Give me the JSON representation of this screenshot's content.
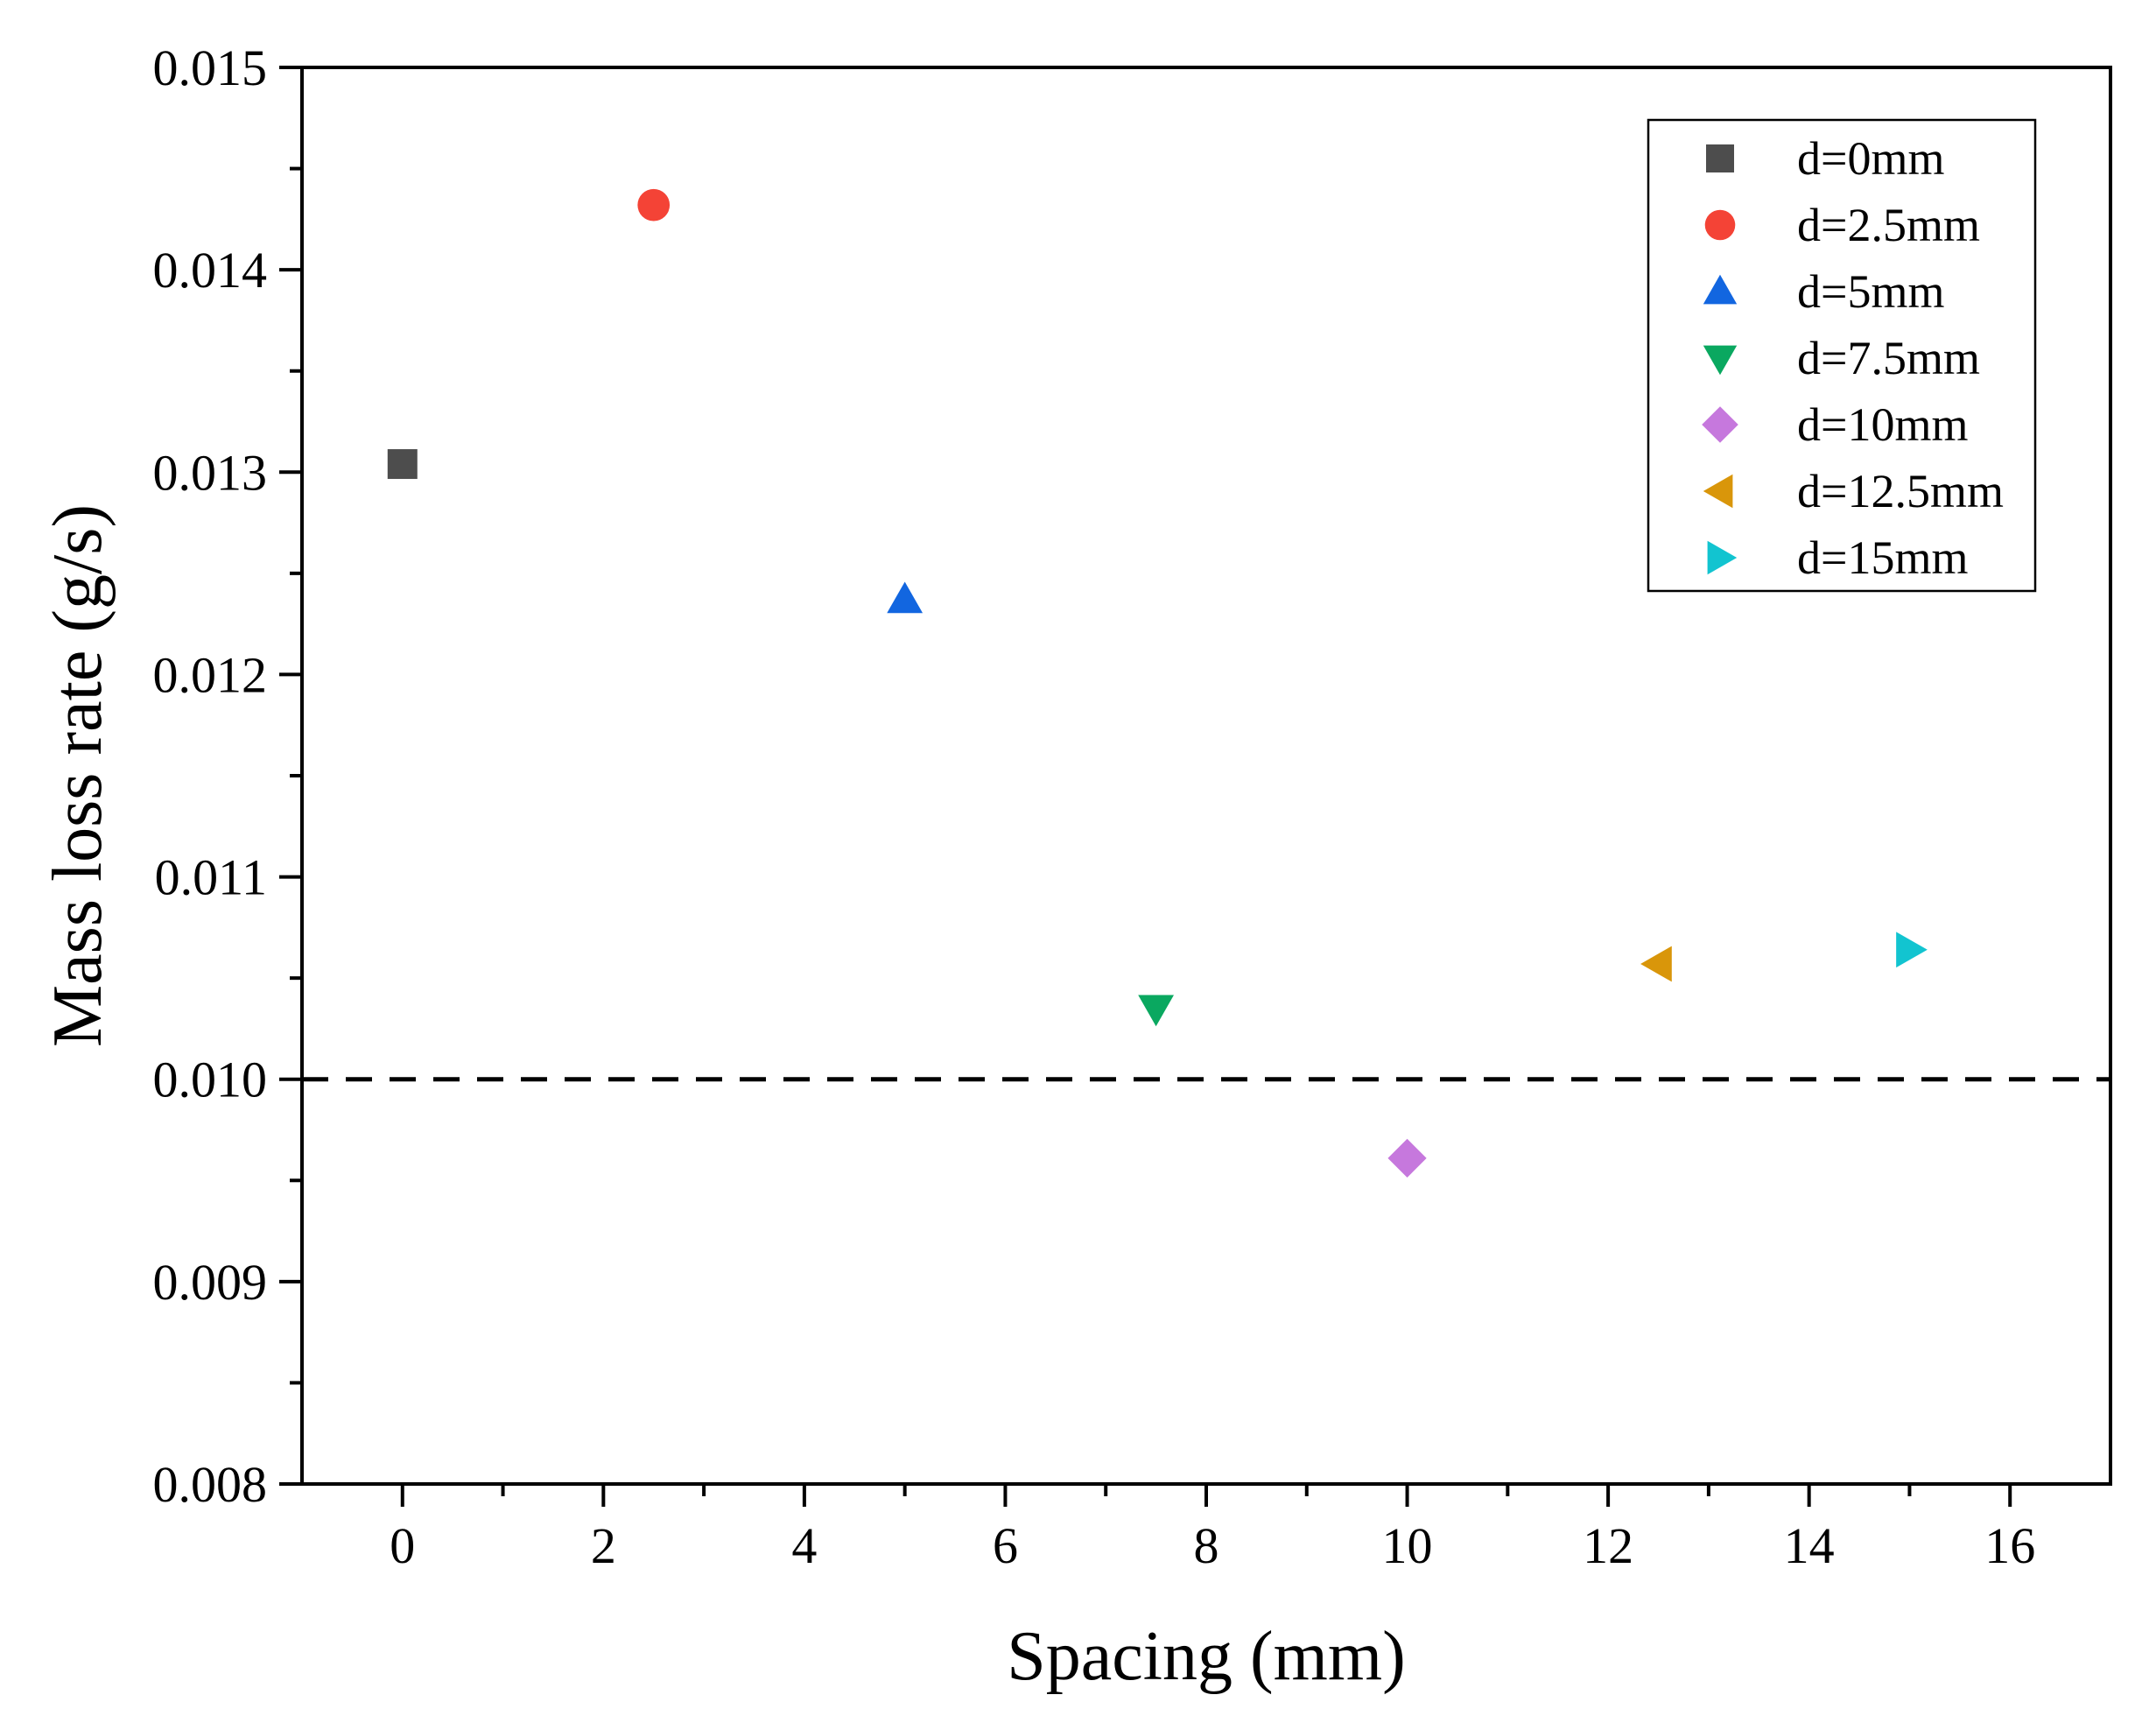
{
  "chart_data": {
    "type": "scatter",
    "title": "",
    "xlabel": "Spacing (mm)",
    "ylabel": "Mass loss rate (g/s)",
    "xlim": [
      -1,
      17
    ],
    "ylim": [
      0.008,
      0.015
    ],
    "xticks": [
      0,
      2,
      4,
      6,
      8,
      10,
      12,
      14,
      16
    ],
    "xtick_labels": [
      "0",
      "2",
      "4",
      "6",
      "8",
      "10",
      "12",
      "14",
      "16"
    ],
    "yticks": [
      0.008,
      0.009,
      0.01,
      0.011,
      0.012,
      0.013,
      0.014,
      0.015
    ],
    "ytick_labels": [
      "0.008",
      "0.009",
      "0.010",
      "0.011",
      "0.012",
      "0.013",
      "0.014",
      "0.015"
    ],
    "reference_line": {
      "y": 0.01,
      "style": "dashed",
      "color": "#000000"
    },
    "legend_position": "top-right",
    "series": [
      {
        "name": "d=0mm",
        "x": 0,
        "y": 0.01304,
        "marker": "square",
        "color": "#4d4d4d"
      },
      {
        "name": "d=2.5mm",
        "x": 2.5,
        "y": 0.01432,
        "marker": "circle",
        "color": "#f44336"
      },
      {
        "name": "d=5mm",
        "x": 5,
        "y": 0.01237,
        "marker": "triangle-up",
        "color": "#1266e0"
      },
      {
        "name": "d=7.5mm",
        "x": 7.5,
        "y": 0.01035,
        "marker": "triangle-down",
        "color": "#0aa860"
      },
      {
        "name": "d=10mm",
        "x": 10,
        "y": 0.00961,
        "marker": "diamond",
        "color": "#c678dd"
      },
      {
        "name": "d=12.5mm",
        "x": 12.5,
        "y": 0.01057,
        "marker": "triangle-left",
        "color": "#d9960a"
      },
      {
        "name": "d=15mm",
        "x": 15,
        "y": 0.01064,
        "marker": "triangle-right",
        "color": "#12c4d0"
      }
    ]
  }
}
